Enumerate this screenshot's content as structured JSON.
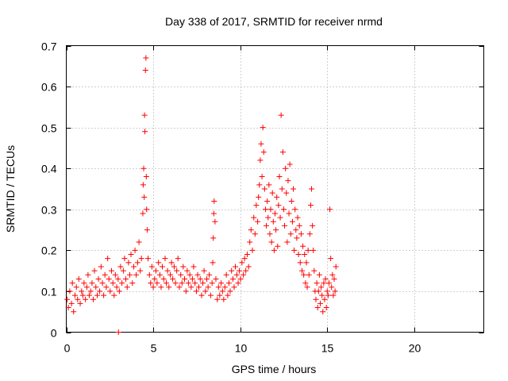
{
  "chart_data": {
    "type": "scatter",
    "title": "Day 338 of 2017, SRMTID for receiver nrmd",
    "xlabel": "GPS time / hours",
    "ylabel": "SRMTID / TECUs",
    "xlim": [
      0,
      24
    ],
    "ylim": [
      0,
      0.7
    ],
    "xticks": [
      0,
      5,
      10,
      15,
      20
    ],
    "xtick_labels": [
      "0",
      "5",
      "10",
      "15",
      "20"
    ],
    "yticks": [
      0,
      0.1,
      0.2,
      0.3,
      0.4,
      0.5,
      0.6,
      0.7
    ],
    "ytick_labels": [
      "0",
      "0.1",
      "0.2",
      "0.3",
      "0.4",
      "0.5",
      "0.6",
      "0.7"
    ],
    "grid": true,
    "marker": "+",
    "series": [
      {
        "name": "SRMTID",
        "color": "#ff0000",
        "x": [
          0.05,
          0.12,
          0.2,
          0.3,
          0.35,
          0.42,
          0.5,
          0.58,
          0.65,
          0.72,
          0.8,
          0.88,
          0.95,
          1.02,
          1.1,
          1.18,
          1.25,
          1.32,
          1.4,
          1.48,
          1.55,
          1.62,
          1.7,
          1.78,
          1.85,
          1.92,
          2.0,
          2.08,
          2.15,
          2.22,
          2.3,
          2.38,
          2.45,
          2.52,
          2.6,
          2.68,
          2.75,
          2.82,
          2.9,
          2.98,
          3.05,
          3.12,
          3.2,
          3.28,
          3.35,
          3.42,
          3.5,
          3.58,
          3.65,
          3.72,
          3.8,
          3.88,
          3.95,
          4.02,
          4.1,
          4.18,
          4.25,
          4.32,
          4.4,
          4.42,
          4.45,
          4.48,
          4.5,
          4.52,
          4.55,
          4.58,
          4.6,
          4.62,
          4.65,
          4.7,
          4.78,
          4.85,
          4.92,
          5.0,
          5.08,
          5.15,
          5.22,
          5.3,
          5.38,
          5.45,
          5.52,
          5.6,
          5.68,
          5.75,
          5.82,
          5.9,
          5.98,
          6.05,
          6.12,
          6.2,
          6.28,
          6.35,
          6.42,
          6.5,
          6.58,
          6.65,
          6.72,
          6.8,
          6.88,
          6.95,
          7.02,
          7.1,
          7.18,
          7.25,
          7.32,
          7.4,
          7.48,
          7.55,
          7.62,
          7.7,
          7.78,
          7.85,
          7.92,
          8.0,
          8.08,
          8.15,
          8.22,
          8.3,
          8.38,
          8.42,
          8.45,
          8.48,
          8.5,
          8.55,
          8.6,
          8.68,
          8.75,
          8.82,
          8.9,
          8.98,
          9.05,
          9.12,
          9.2,
          9.28,
          9.35,
          9.42,
          9.5,
          9.58,
          9.65,
          9.72,
          9.8,
          9.88,
          9.95,
          10.02,
          10.1,
          10.18,
          10.25,
          10.32,
          10.4,
          10.48,
          10.55,
          10.62,
          10.7,
          10.78,
          10.85,
          10.92,
          11.0,
          11.05,
          11.1,
          11.15,
          11.2,
          11.25,
          11.3,
          11.35,
          11.4,
          11.45,
          11.5,
          11.55,
          11.6,
          11.65,
          11.7,
          11.75,
          11.8,
          11.85,
          11.9,
          11.95,
          12.0,
          12.05,
          12.1,
          12.15,
          12.2,
          12.25,
          12.3,
          12.35,
          12.4,
          12.45,
          12.5,
          12.55,
          12.6,
          12.65,
          12.7,
          12.75,
          12.8,
          12.85,
          12.9,
          12.95,
          13.0,
          13.05,
          13.1,
          13.15,
          13.2,
          13.25,
          13.3,
          13.35,
          13.4,
          13.45,
          13.5,
          13.55,
          13.6,
          13.65,
          13.7,
          13.75,
          13.8,
          13.85,
          13.9,
          13.95,
          14.0,
          14.05,
          14.1,
          14.15,
          14.2,
          14.25,
          14.3,
          14.35,
          14.4,
          14.45,
          14.5,
          14.55,
          14.6,
          14.65,
          14.7,
          14.75,
          14.8,
          14.85,
          14.9,
          14.95,
          15.0,
          15.05,
          15.1,
          15.15,
          15.2,
          15.25,
          15.3,
          15.35,
          15.4,
          15.45,
          15.5,
          3.0
        ],
        "y": [
          0.08,
          0.06,
          0.1,
          0.07,
          0.12,
          0.05,
          0.09,
          0.11,
          0.08,
          0.13,
          0.07,
          0.1,
          0.09,
          0.12,
          0.08,
          0.11,
          0.14,
          0.09,
          0.1,
          0.12,
          0.08,
          0.15,
          0.11,
          0.09,
          0.13,
          0.1,
          0.16,
          0.12,
          0.09,
          0.14,
          0.11,
          0.18,
          0.13,
          0.1,
          0.15,
          0.12,
          0.09,
          0.14,
          0.11,
          0.13,
          0.1,
          0.16,
          0.12,
          0.15,
          0.18,
          0.13,
          0.11,
          0.17,
          0.14,
          0.19,
          0.12,
          0.16,
          0.2,
          0.14,
          0.17,
          0.22,
          0.15,
          0.18,
          0.29,
          0.36,
          0.4,
          0.33,
          0.53,
          0.49,
          0.64,
          0.67,
          0.38,
          0.3,
          0.25,
          0.18,
          0.14,
          0.12,
          0.16,
          0.11,
          0.13,
          0.15,
          0.12,
          0.17,
          0.14,
          0.11,
          0.16,
          0.13,
          0.18,
          0.12,
          0.15,
          0.11,
          0.14,
          0.17,
          0.13,
          0.16,
          0.12,
          0.15,
          0.18,
          0.11,
          0.14,
          0.12,
          0.16,
          0.13,
          0.1,
          0.15,
          0.12,
          0.14,
          0.11,
          0.13,
          0.16,
          0.12,
          0.1,
          0.14,
          0.11,
          0.13,
          0.09,
          0.12,
          0.15,
          0.1,
          0.13,
          0.11,
          0.14,
          0.09,
          0.12,
          0.17,
          0.23,
          0.29,
          0.32,
          0.27,
          0.13,
          0.08,
          0.11,
          0.09,
          0.12,
          0.1,
          0.08,
          0.11,
          0.14,
          0.09,
          0.12,
          0.1,
          0.15,
          0.13,
          0.11,
          0.16,
          0.14,
          0.12,
          0.15,
          0.13,
          0.17,
          0.14,
          0.18,
          0.15,
          0.19,
          0.16,
          0.22,
          0.25,
          0.2,
          0.28,
          0.24,
          0.31,
          0.27,
          0.33,
          0.36,
          0.42,
          0.46,
          0.38,
          0.5,
          0.44,
          0.35,
          0.3,
          0.26,
          0.32,
          0.28,
          0.36,
          0.24,
          0.3,
          0.22,
          0.34,
          0.27,
          0.2,
          0.29,
          0.25,
          0.33,
          0.21,
          0.31,
          0.38,
          0.28,
          0.53,
          0.35,
          0.44,
          0.3,
          0.26,
          0.4,
          0.34,
          0.22,
          0.37,
          0.29,
          0.41,
          0.24,
          0.32,
          0.27,
          0.35,
          0.2,
          0.3,
          0.25,
          0.23,
          0.28,
          0.19,
          0.26,
          0.17,
          0.24,
          0.15,
          0.21,
          0.14,
          0.19,
          0.12,
          0.17,
          0.11,
          0.2,
          0.14,
          0.24,
          0.31,
          0.35,
          0.26,
          0.2,
          0.15,
          0.1,
          0.08,
          0.12,
          0.06,
          0.1,
          0.14,
          0.07,
          0.11,
          0.09,
          0.05,
          0.12,
          0.08,
          0.13,
          0.06,
          0.1,
          0.09,
          0.12,
          0.3,
          0.18,
          0.11,
          0.14,
          0.09,
          0.13,
          0.1,
          0.16,
          0.0
        ]
      }
    ]
  }
}
